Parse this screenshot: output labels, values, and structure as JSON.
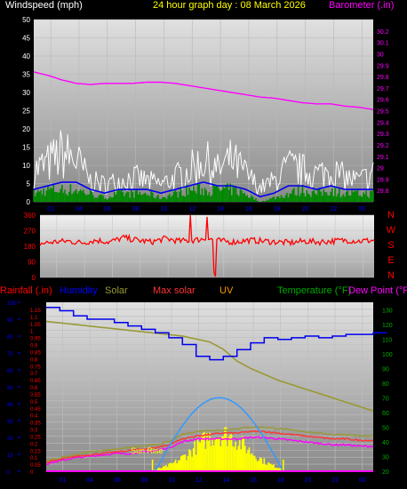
{
  "header": {
    "wind_label": "Windspeed (mph)",
    "title": "24 hour graph day : 08 March 2026",
    "baro_label": "Barometer (.in)"
  },
  "lower_header": {
    "rain_label": "Rainfall (.in)",
    "humidity_label": "Humidity",
    "solar_label": "Solar",
    "maxsolar_label": "Max solar",
    "uv_label": "UV",
    "temp_label": "Temperature (°F)",
    "dew_label": "Dew Point (°F)",
    "sunrise_label": "Sun Rise"
  },
  "colors": {
    "wind_label": "#ffffff",
    "title": "#ffff00",
    "baro": "#ff00ff",
    "rain": "#ff0000",
    "humidity": "#0000ff",
    "solar": "#999933",
    "maxsolar": "#ff3333",
    "uv": "#ff9900",
    "temp": "#00aa00",
    "dew": "#ff00ff",
    "winddir": "#ff0000",
    "compass": "#ff0000",
    "sunrise": "#ffff00"
  },
  "x_ticks": [
    "01",
    "04",
    "06",
    "08",
    "10",
    "12",
    "14",
    "16",
    "18",
    "20",
    "22",
    "00"
  ],
  "chart_data": [
    {
      "type": "line",
      "name": "wind-barometer",
      "x": [
        0,
        1,
        2,
        3,
        4,
        5,
        6,
        7,
        8,
        9,
        10,
        11,
        12,
        13,
        14,
        15,
        16,
        17,
        18,
        19,
        20,
        21,
        22,
        23,
        24
      ],
      "series": [
        {
          "name": "Windspeed (mph)",
          "axis": "left",
          "ylim": [
            0,
            50
          ],
          "gust": [
            9,
            11,
            14,
            12,
            6,
            5,
            6,
            7,
            6,
            5,
            7,
            9,
            12,
            9,
            12,
            8,
            4,
            6,
            10,
            9,
            8,
            9,
            7,
            6,
            8
          ],
          "speed": [
            3,
            4,
            5,
            5,
            3,
            2,
            3,
            3,
            3,
            2,
            3,
            4,
            5,
            4,
            4,
            3,
            1,
            2,
            4,
            4,
            3,
            4,
            3,
            3,
            3
          ],
          "avg": [
            2,
            3,
            3,
            3,
            2,
            1,
            2,
            2,
            2,
            1,
            2,
            3,
            3,
            3,
            3,
            2,
            0,
            1,
            2,
            3,
            2,
            3,
            2,
            2,
            2
          ]
        },
        {
          "name": "Barometer (.in)",
          "axis": "right",
          "ylim": [
            28.7,
            30.3
          ],
          "values": [
            29.84,
            29.81,
            29.77,
            29.74,
            29.73,
            29.74,
            29.74,
            29.74,
            29.75,
            29.75,
            29.74,
            29.72,
            29.7,
            29.68,
            29.66,
            29.64,
            29.62,
            29.61,
            29.59,
            29.57,
            29.56,
            29.56,
            29.54,
            29.53,
            29.51
          ]
        }
      ],
      "left_ticks": [
        0,
        5,
        10,
        15,
        20,
        25,
        30,
        35,
        40,
        45,
        50
      ],
      "right_ticks": [
        "28.8",
        "28.9",
        "29",
        "29.1",
        "29.2",
        "29.3",
        "29.4",
        "29.5",
        "29.6",
        "29.7",
        "29.8",
        "29.9",
        "30",
        "30.1",
        "30.2"
      ]
    },
    {
      "type": "line",
      "name": "wind-direction",
      "ylim": [
        0,
        360
      ],
      "left_ticks": [
        0,
        90,
        180,
        270,
        360
      ],
      "compass": [
        "N",
        "W",
        "S",
        "E",
        "N"
      ],
      "x": [
        0,
        1,
        2,
        3,
        4,
        5,
        6,
        7,
        8,
        9,
        10,
        11,
        12,
        13,
        14,
        15,
        16,
        17,
        18,
        19,
        20,
        21,
        22,
        23,
        24
      ],
      "values": [
        195,
        205,
        210,
        200,
        215,
        205,
        230,
        215,
        205,
        225,
        210,
        215,
        225,
        210,
        205,
        215,
        210,
        205,
        200,
        210,
        205,
        210,
        215,
        210,
        215
      ]
    },
    {
      "type": "line",
      "name": "weather",
      "x": [
        0,
        1,
        2,
        3,
        4,
        5,
        6,
        7,
        8,
        9,
        10,
        11,
        12,
        13,
        14,
        15,
        16,
        17,
        18,
        19,
        20,
        21,
        22,
        23,
        24
      ],
      "rain_ticks": [
        "0",
        "0.05",
        "0.1",
        "0.15",
        "0.2",
        "0.25",
        "0.3",
        "0.35",
        "0.4",
        "0.45",
        "0.5",
        "0.55",
        "0.6",
        "0.65",
        "0.7",
        "0.75",
        "0.8",
        "0.85",
        "0.9",
        "0.95",
        "1",
        "1.05",
        "1.1",
        "1.15"
      ],
      "rain_ylim": [
        0,
        1.2
      ],
      "humidity_ticks": [
        0,
        10,
        20,
        30,
        40,
        50,
        60,
        70,
        80,
        90,
        100
      ],
      "humidity_ylim": [
        0,
        100
      ],
      "temp_ticks": [
        20,
        30,
        40,
        50,
        60,
        70,
        80,
        90,
        100,
        110,
        120,
        130
      ],
      "temp_ylim": [
        20,
        135
      ],
      "series": [
        {
          "name": "Humidity",
          "axis": "humidity",
          "values": [
            97,
            95,
            92,
            90,
            90,
            88,
            86,
            84,
            82,
            79,
            75,
            68,
            66,
            68,
            72,
            76,
            79,
            78,
            79,
            80,
            79,
            80,
            81,
            81,
            82
          ]
        },
        {
          "name": "Temperature",
          "axis": "temp",
          "values": [
            122,
            121,
            120,
            119,
            118,
            117,
            116,
            115,
            114,
            113,
            112,
            110,
            108,
            103,
            95,
            90,
            86,
            82,
            79,
            76,
            73,
            70,
            67,
            64,
            61
          ]
        },
        {
          "name": "Solar",
          "axis": "temp",
          "values": [
            27,
            29,
            31,
            33,
            34,
            35,
            36,
            37,
            38,
            40,
            45,
            47,
            48,
            48,
            49,
            50,
            50,
            49,
            48,
            47,
            46,
            45,
            45,
            44,
            44
          ]
        },
        {
          "name": "Max solar",
          "axis": "temp",
          "values": [
            26,
            28,
            30,
            31,
            32,
            33,
            34,
            35,
            36,
            38,
            42,
            44,
            45,
            46,
            46,
            47,
            47,
            46,
            45,
            44,
            43,
            42,
            42,
            41,
            41
          ]
        },
        {
          "name": "Dew Point",
          "axis": "temp",
          "values": [
            25,
            27,
            29,
            30,
            31,
            32,
            32,
            33,
            34,
            36,
            40,
            42,
            42,
            42,
            42,
            43,
            43,
            42,
            41,
            40,
            39,
            38,
            38,
            37,
            37
          ]
        },
        {
          "name": "UV",
          "axis": "temp",
          "values": [
            20,
            20,
            20,
            20,
            20,
            20,
            20,
            20,
            23,
            30,
            38,
            46,
            52,
            55,
            52,
            45,
            36,
            26,
            20,
            20,
            20,
            20,
            20,
            20,
            20
          ]
        }
      ]
    }
  ]
}
